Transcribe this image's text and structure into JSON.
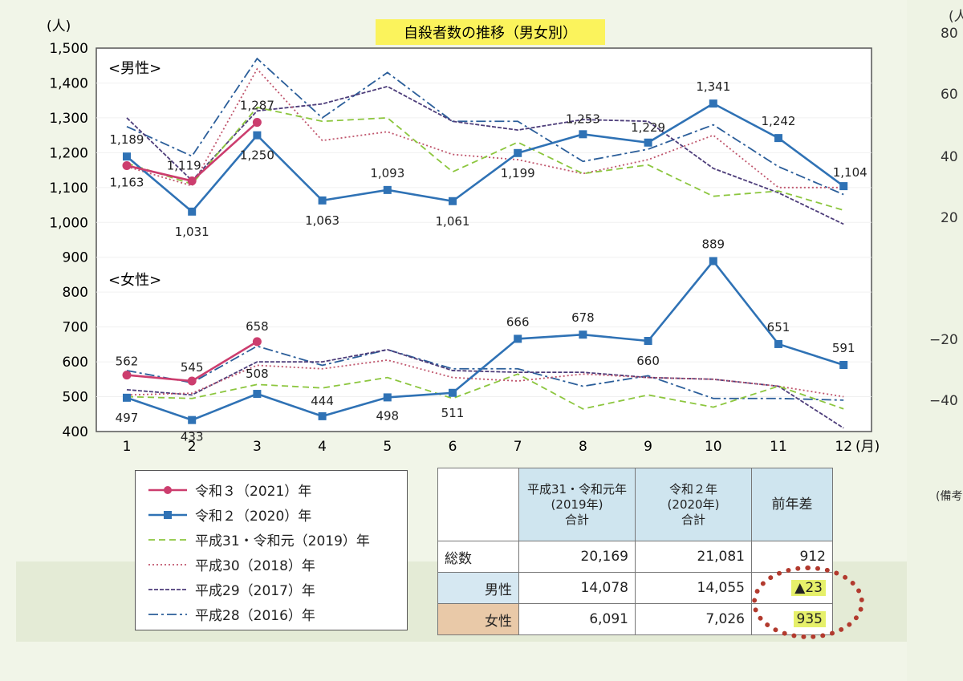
{
  "chart_data": {
    "type": "line",
    "title": "自殺者数の推移（男女別）",
    "ylabel": "(人)",
    "xlabel": "(月)",
    "ylim": [
      400,
      1500
    ],
    "yticks": [
      "1,500",
      "1,400",
      "1,300",
      "1,200",
      "1,100",
      "1,000",
      "900",
      "800",
      "700",
      "600",
      "500",
      "400"
    ],
    "categories": [
      "1",
      "2",
      "3",
      "4",
      "5",
      "6",
      "7",
      "8",
      "9",
      "10",
      "11",
      "12"
    ],
    "sections": {
      "male": "<男性>",
      "female": "<女性>"
    },
    "series": [
      {
        "name": "令和３（2021）年",
        "group": "male",
        "values": [
          1163,
          1119,
          1287,
          null,
          null,
          null,
          null,
          null,
          null,
          null,
          null,
          null
        ]
      },
      {
        "name": "令和２（2020）年",
        "group": "male",
        "values": [
          1189,
          1031,
          1250,
          1063,
          1093,
          1061,
          1199,
          1253,
          1229,
          1341,
          1242,
          1104
        ]
      },
      {
        "name": "平成31・令和元（2019）年",
        "group": "male",
        "values": [
          1170,
          1110,
          1330,
          1290,
          1300,
          1145,
          1230,
          1140,
          1165,
          1075,
          1090,
          1035
        ]
      },
      {
        "name": "平成30（2018）年",
        "group": "male",
        "values": [
          1160,
          1105,
          1440,
          1235,
          1260,
          1195,
          1180,
          1140,
          1180,
          1250,
          1100,
          1100
        ]
      },
      {
        "name": "平成29（2017）年",
        "group": "male",
        "values": [
          1300,
          1120,
          1320,
          1340,
          1390,
          1290,
          1265,
          1295,
          1290,
          1155,
          1085,
          995
        ]
      },
      {
        "name": "平成28（2016）年",
        "group": "male",
        "values": [
          1275,
          1190,
          1470,
          1300,
          1430,
          1290,
          1290,
          1175,
          1210,
          1280,
          1160,
          1080
        ]
      },
      {
        "name": "令和３（2021）年",
        "group": "female",
        "values": [
          562,
          545,
          658,
          null,
          null,
          null,
          null,
          null,
          null,
          null,
          null,
          null
        ]
      },
      {
        "name": "令和２（2020）年",
        "group": "female",
        "values": [
          497,
          433,
          508,
          444,
          498,
          511,
          666,
          678,
          660,
          889,
          651,
          591
        ]
      },
      {
        "name": "平成31・令和元（2019）年",
        "group": "female",
        "values": [
          500,
          495,
          535,
          525,
          555,
          495,
          565,
          465,
          505,
          470,
          530,
          465
        ]
      },
      {
        "name": "平成30（2018）年",
        "group": "female",
        "values": [
          505,
          510,
          590,
          580,
          605,
          555,
          545,
          565,
          555,
          550,
          530,
          500
        ]
      },
      {
        "name": "平成29（2017）年",
        "group": "female",
        "values": [
          520,
          505,
          600,
          600,
          635,
          575,
          570,
          570,
          555,
          550,
          530,
          410
        ]
      },
      {
        "name": "平成28（2016）年",
        "group": "female",
        "values": [
          575,
          540,
          645,
          590,
          635,
          580,
          580,
          530,
          560,
          495,
          495,
          490
        ]
      }
    ],
    "labels": {
      "male_2021": [
        "1,163",
        "1,119",
        "1,287"
      ],
      "male_2020": [
        "1,189",
        "1,031",
        "1,250",
        "1,063",
        "1,093",
        "1,061",
        "1,199",
        "1,253",
        "1,229",
        "1,341",
        "1,242",
        "1,104"
      ],
      "female_2021": [
        "562",
        "545",
        "658"
      ],
      "female_2020": [
        "497",
        "433",
        "508",
        "444",
        "498",
        "511",
        "666",
        "678",
        "660",
        "889",
        "651",
        "591"
      ]
    },
    "colors": {
      "令和３（2021）年": "#cc3d6e",
      "令和２（2020）年": "#2f72b5",
      "平成31・令和元（2019）年": "#8cc63e",
      "平成30（2018）年": "#c0566d",
      "平成29（2017）年": "#4d3d7a",
      "平成28（2016）年": "#2b5e9a"
    }
  },
  "legend": [
    {
      "label": "令和３（2021）年",
      "color": "#cc3d6e",
      "style": "solid-circle"
    },
    {
      "label": "令和２（2020）年",
      "color": "#2f72b5",
      "style": "solid-square"
    },
    {
      "label": "平成31・令和元（2019）年",
      "color": "#8cc63e",
      "style": "dashed"
    },
    {
      "label": "平成30（2018）年",
      "color": "#c0566d",
      "style": "dotted"
    },
    {
      "label": "平成29（2017）年",
      "color": "#4d3d7a",
      "style": "dash-dense"
    },
    {
      "label": "平成28（2016）年",
      "color": "#2b5e9a",
      "style": "dash-dot"
    }
  ],
  "summary_table": {
    "headers": [
      "平成31・令和元年\n(2019年)\n合計",
      "令和２年\n(2020年)\n合計",
      "前年差"
    ],
    "rows": [
      {
        "label": "総数",
        "v2019": "20,169",
        "v2020": "21,081",
        "diff": "912"
      },
      {
        "label": "男性",
        "v2019": "14,078",
        "v2020": "14,055",
        "diff": "▲23"
      },
      {
        "label": "女性",
        "v2019": "6,091",
        "v2020": "7,026",
        "diff": "935"
      }
    ]
  },
  "side_axis": {
    "unit": "(人",
    "ticks": [
      "80",
      "60",
      "40",
      "20",
      "−20",
      "−40"
    ],
    "note": "(備考"
  }
}
